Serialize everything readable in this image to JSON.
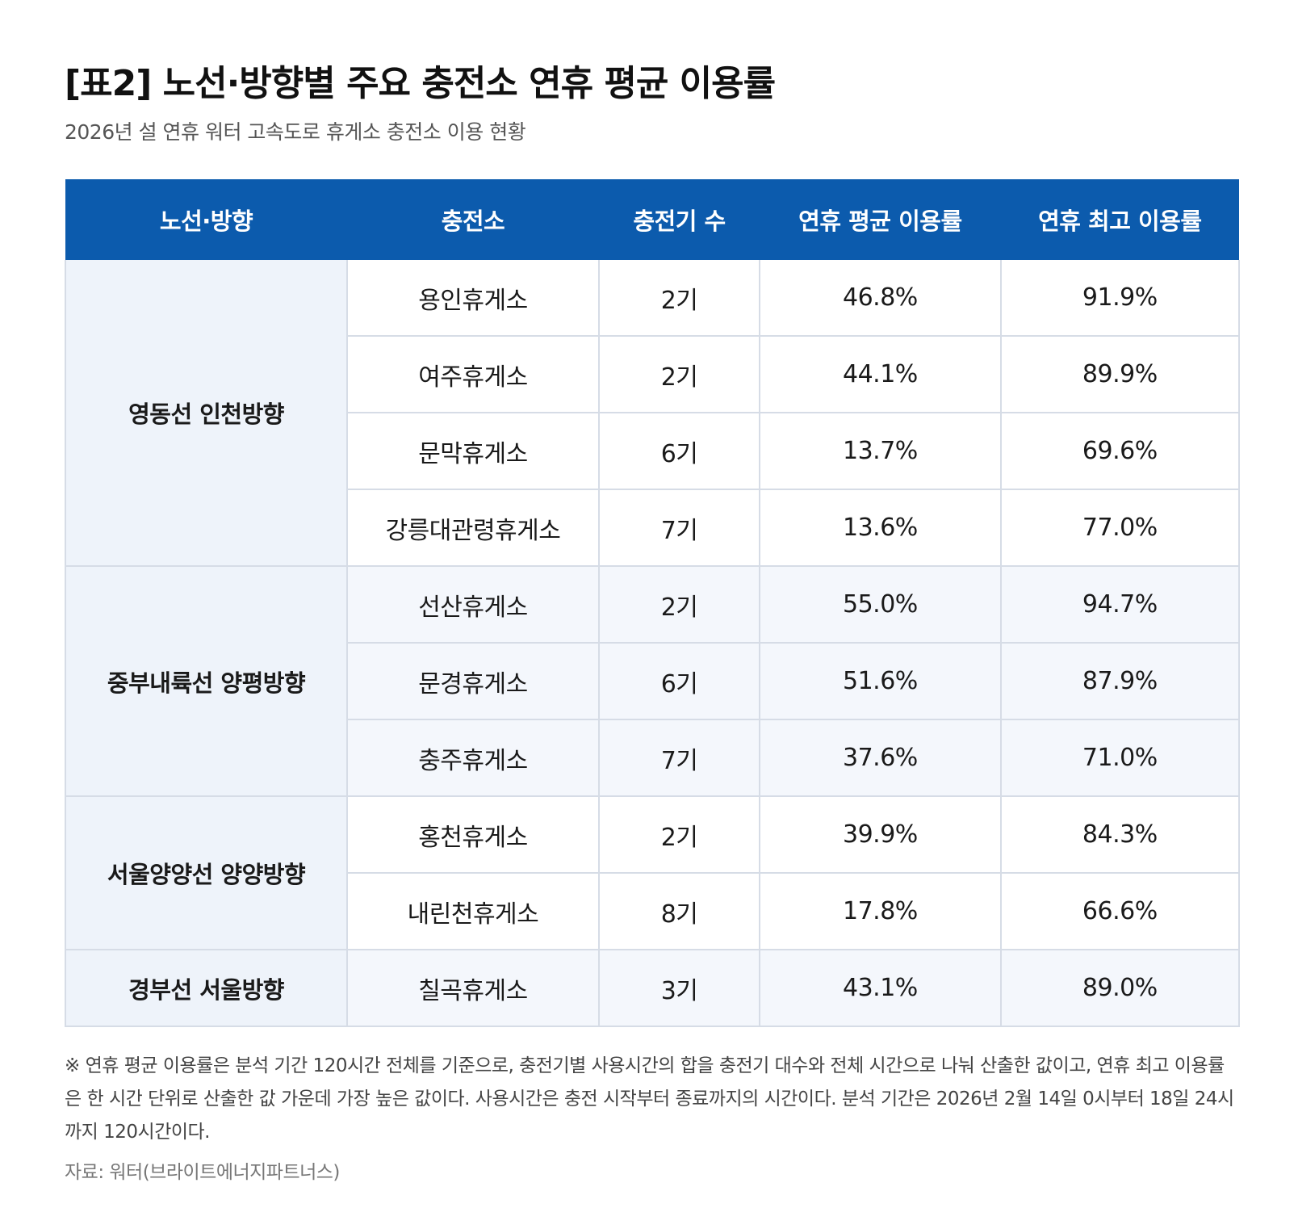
{
  "title": "[표2] 노선·방향별 주요 충전소 연휴 평균 이용률",
  "subtitle": "2026년 설 연휴 워터 고속도로 휴게소 충전소 이용 현황",
  "table": {
    "headers": [
      "노선·방향",
      "충전소",
      "충전기 수",
      "연휴 평균 이용률",
      "연휴 최고 이용률"
    ],
    "groups": [
      {
        "route": "영동선 인천방향",
        "rows": [
          {
            "station": "용인휴게소",
            "chargers": "2기",
            "avg": "46.8%",
            "max": "91.9%"
          },
          {
            "station": "여주휴게소",
            "chargers": "2기",
            "avg": "44.1%",
            "max": "89.9%"
          },
          {
            "station": "문막휴게소",
            "chargers": "6기",
            "avg": "13.7%",
            "max": "69.6%"
          },
          {
            "station": "강릉대관령휴게소",
            "chargers": "7기",
            "avg": "13.6%",
            "max": "77.0%"
          }
        ]
      },
      {
        "route": "중부내륙선 양평방향",
        "rows": [
          {
            "station": "선산휴게소",
            "chargers": "2기",
            "avg": "55.0%",
            "max": "94.7%"
          },
          {
            "station": "문경휴게소",
            "chargers": "6기",
            "avg": "51.6%",
            "max": "87.9%"
          },
          {
            "station": "충주휴게소",
            "chargers": "7기",
            "avg": "37.6%",
            "max": "71.0%"
          }
        ]
      },
      {
        "route": "서울양양선 양양방향",
        "rows": [
          {
            "station": "홍천휴게소",
            "chargers": "2기",
            "avg": "39.9%",
            "max": "84.3%"
          },
          {
            "station": "내린천휴게소",
            "chargers": "8기",
            "avg": "17.8%",
            "max": "66.6%"
          }
        ]
      },
      {
        "route": "경부선 서울방향",
        "rows": [
          {
            "station": "칠곡휴게소",
            "chargers": "3기",
            "avg": "43.1%",
            "max": "89.0%"
          }
        ]
      }
    ]
  },
  "note": "※ 연휴 평균 이용률은 분석 기간 120시간 전체를 기준으로, 충전기별 사용시간의 합을 충전기 대수와 전체 시간으로 나눠 산출한 값이고, 연휴 최고 이용률은 한 시간 단위로 산출한 값 가운데 가장 높은 값이다. 사용시간은 충전 시작부터 종료까지의 시간이다. 분석 기간은 2026년 2월 14일 0시부터 18일 24시까지 120시간이다.",
  "source": "자료: 워터(브라이트에너지파트너스)"
}
